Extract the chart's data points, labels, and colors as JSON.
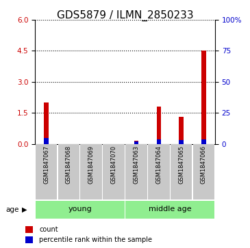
{
  "title": "GDS5879 / ILMN_2850233",
  "samples": [
    "GSM1847067",
    "GSM1847068",
    "GSM1847069",
    "GSM1847070",
    "GSM1847063",
    "GSM1847064",
    "GSM1847065",
    "GSM1847066"
  ],
  "red_values": [
    2.0,
    0.0,
    0.0,
    0.0,
    0.15,
    1.8,
    1.3,
    4.5
  ],
  "blue_values": [
    0.28,
    0.0,
    0.0,
    0.0,
    0.12,
    0.22,
    0.18,
    0.22
  ],
  "left_ylim": [
    0,
    6
  ],
  "left_yticks": [
    0,
    1.5,
    3,
    4.5,
    6
  ],
  "right_ylim": [
    0,
    100
  ],
  "right_yticks": [
    0,
    25,
    50,
    75,
    100
  ],
  "right_yticklabels": [
    "0",
    "25",
    "50",
    "75",
    "100%"
  ],
  "groups": [
    {
      "label": "young",
      "indices": [
        0,
        1,
        2,
        3
      ],
      "color": "#90EE90"
    },
    {
      "label": "middle age",
      "indices": [
        4,
        5,
        6,
        7
      ],
      "color": "#90EE90"
    }
  ],
  "age_label": "age",
  "legend_items": [
    {
      "color": "#CC0000",
      "label": "count"
    },
    {
      "color": "#0000CC",
      "label": "percentile rank within the sample"
    }
  ],
  "bar_color_red": "#CC0000",
  "bar_color_blue": "#0000CC",
  "bar_bg_color": "#C8C8C8",
  "title_fontsize": 11,
  "tick_fontsize": 7.5,
  "label_fontsize": 6,
  "group_fontsize": 8
}
